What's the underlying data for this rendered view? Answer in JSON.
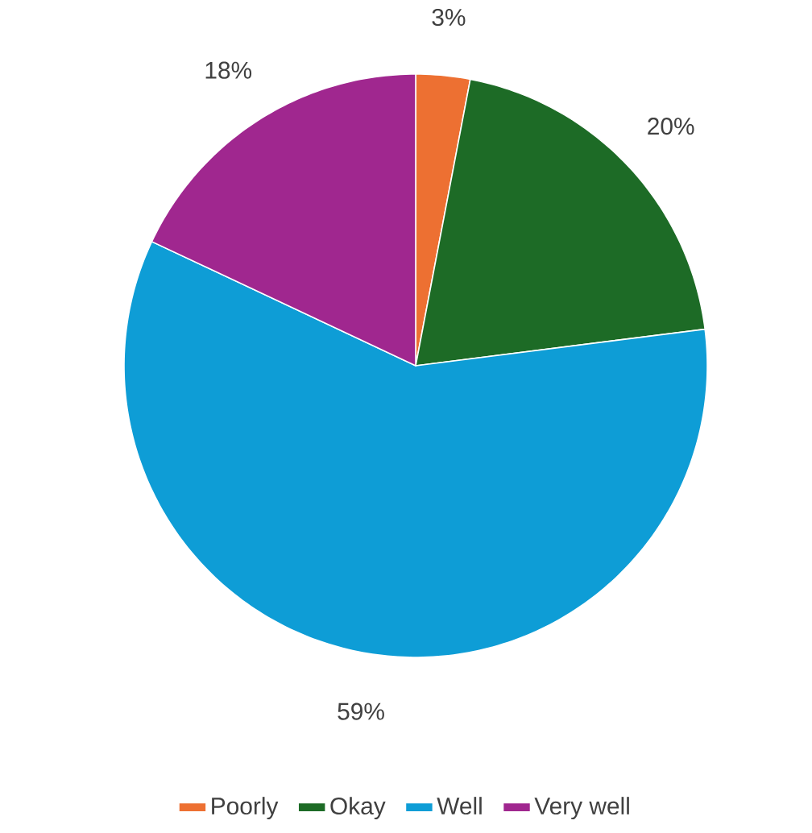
{
  "chart_data": {
    "type": "pie",
    "categories": [
      "Poorly",
      "Okay",
      "Well",
      "Very well"
    ],
    "values": [
      3,
      20,
      59,
      18
    ],
    "colors": [
      "#ed7032",
      "#1d6b26",
      "#0e9dd6",
      "#a0278f"
    ],
    "value_labels": [
      "3%",
      "20%",
      "59%",
      "18%"
    ],
    "legend": "bottom"
  }
}
